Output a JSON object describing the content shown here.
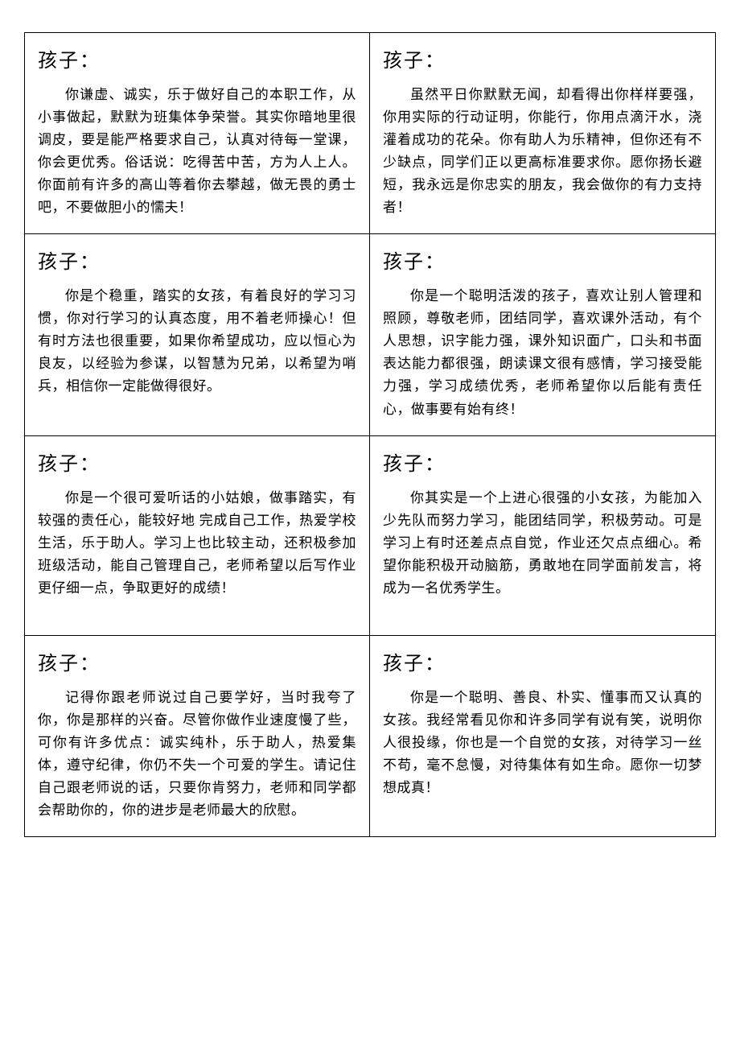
{
  "layout": {
    "columns": 2,
    "rows": 4,
    "border_color": "#000000",
    "background_color": "#ffffff",
    "heading_font": "华文行楷",
    "heading_fontsize": 24,
    "body_font": "SimSun",
    "body_fontsize": 17,
    "body_lineheight": 1.65,
    "text_indent_em": 2
  },
  "cells": [
    {
      "heading": "孩子：",
      "body": "你谦虚、诚实，乐于做好自己的本职工作，从小事做起，默默为班集体争荣誉。其实你暗地里很调皮，要是能严格要求自己，认真对待每一堂课，你会更优秀。俗话说：吃得苦中苦，方为人上人。你面前有许多的高山等着你去攀越，做无畏的勇士吧，不要做胆小的懦夫！"
    },
    {
      "heading": "孩子：",
      "body": "虽然平日你默默无闻，却看得出你样样要强，你用实际的行动证明，你能行，你用点滴汗水，浇灌着成功的花朵。你有助人为乐精神，但你还有不少缺点，同学们正以更高标准要求你。愿你扬长避短，我永远是你忠实的朋友，我会做你的有力支持者！"
    },
    {
      "heading": "孩子：",
      "body": "你是个稳重，踏实的女孩，有着良好的学习习惯，你对行学习的认真态度，用不着老师操心！但有时方法也很重要，如果你希望成功，应以恒心为良友，以经验为参谋，以智慧为兄弟，以希望为哨兵，相信你一定能做得很好。"
    },
    {
      "heading": "孩子：",
      "body": "你是一个聪明活泼的孩子，喜欢让别人管理和照顾，尊敬老师，团结同学，喜欢课外活动，有个人思想，识字能力强，课外知识面广，口头和书面表达能力都很强，朗读课文很有感情，学习接受能力强，学习成绩优秀，老师希望你以后能有责任心，做事要有始有终！"
    },
    {
      "heading": "孩子：",
      "body": "你是一个很可爱听话的小姑娘，做事踏实，有较强的责任心，能较好地 完成自己工作，热爱学校生活，乐于助人。学习上也比较主动，还积极参加班级活动，能自己管理自己，老师希望以后写作业更仔细一点，争取更好的成绩！"
    },
    {
      "heading": "孩子：",
      "body": "你其实是一个上进心很强的小女孩，为能加入少先队而努力学习，能团结同学，积极劳动。可是学习上有时还差点点自觉，作业还欠点点细心。希望你能积极开动脑筋，勇敢地在同学面前发言，将成为一名优秀学生。"
    },
    {
      "heading": "孩子：",
      "body": "记得你跟老师说过自己要学好，当时我夸了你，你是那样的兴奋。尽管你做作业速度慢了些，可你有许多优点：诚实纯朴，乐于助人，热爱集体，遵守纪律，你仍不失一个可爱的学生。请记住自己跟老师说的话，只要你肯努力，老师和同学都会帮助你的，你的进步是老师最大的欣慰。"
    },
    {
      "heading": "孩子：",
      "body": "你是一个聪明、善良、朴实、懂事而又认真的女孩。我经常看见你和许多同学有说有笑，说明你人很投缘，你也是一个自觉的女孩，对待学习一丝不苟，毫不怠慢，对待集体有如生命。愿你一切梦想成真！"
    }
  ]
}
